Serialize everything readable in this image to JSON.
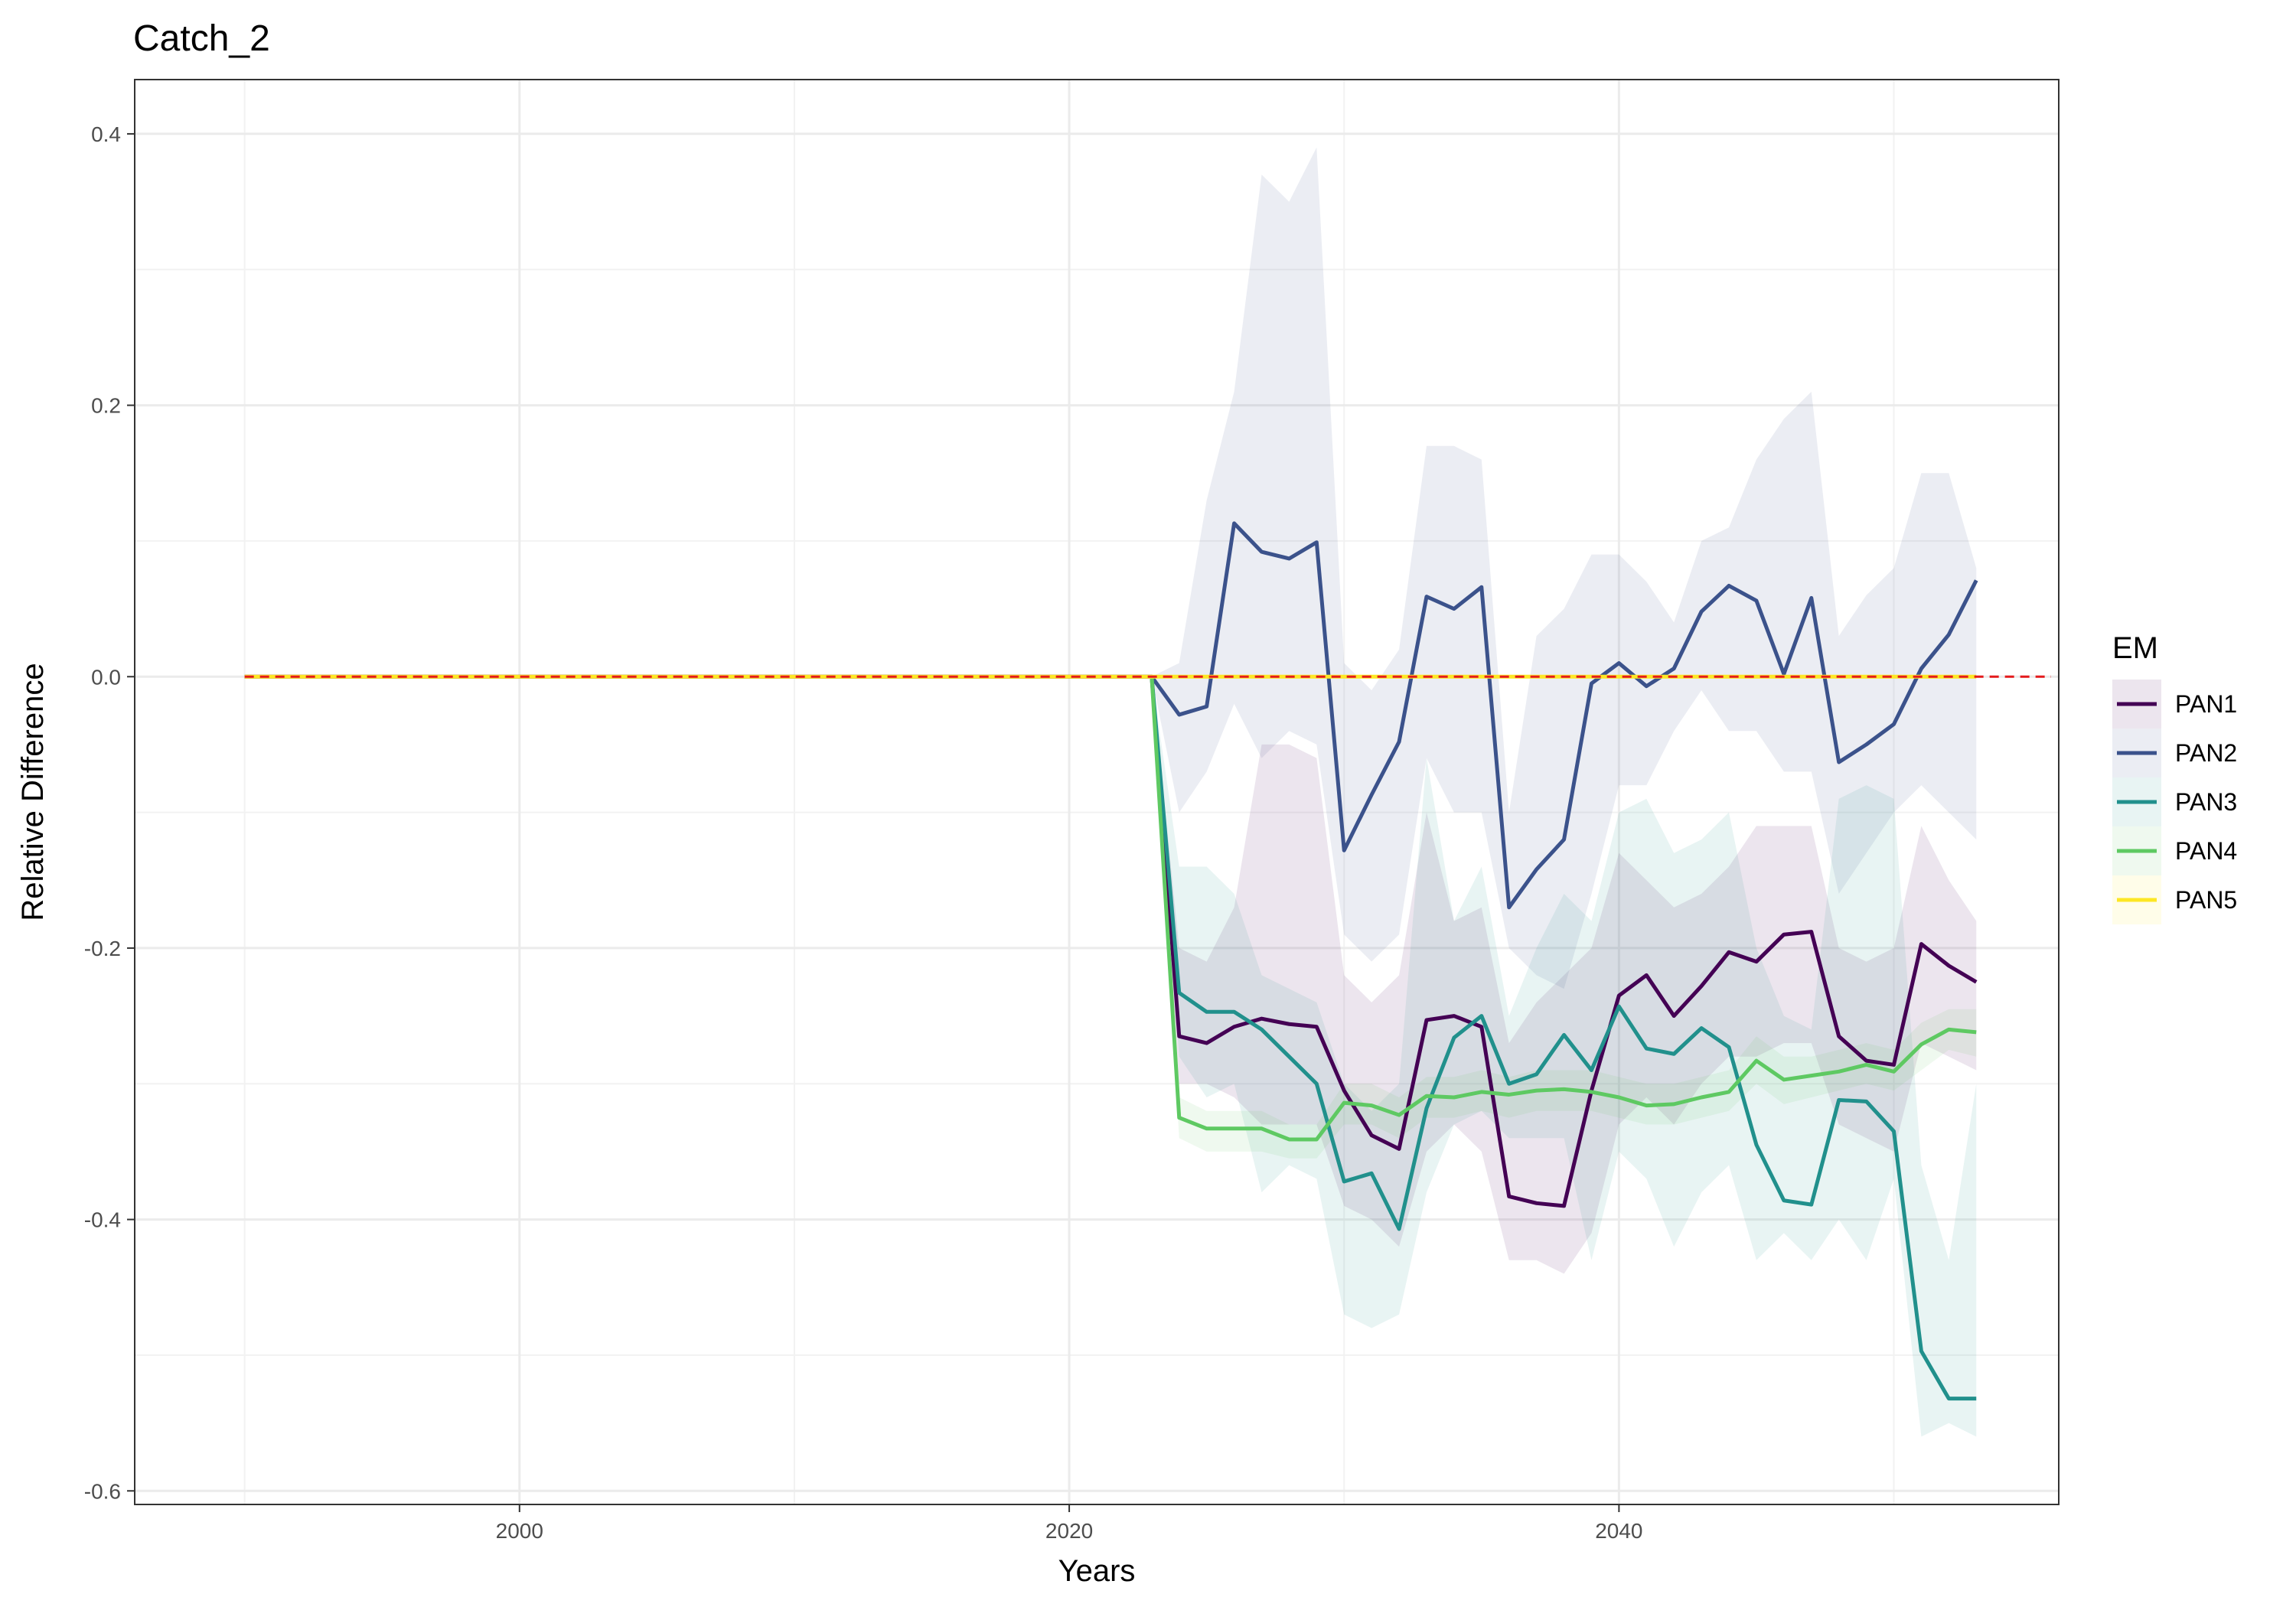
{
  "chart_data": {
    "type": "line",
    "title": "Catch_2",
    "xlabel": "Years",
    "ylabel": "Relative Difference",
    "xlim": [
      1986,
      2056
    ],
    "ylim": [
      -0.61,
      0.44
    ],
    "x_ticks": [
      2000,
      2020,
      2040
    ],
    "x_tick_labels": [
      "2000",
      "2020",
      "2040"
    ],
    "y_ticks": [
      0.4,
      0.2,
      0.0,
      -0.2,
      -0.4,
      -0.6
    ],
    "y_tick_labels": [
      "0.4",
      "0.2",
      "0.0",
      "-0.2",
      "-0.4",
      "-0.6"
    ],
    "grid": true,
    "reference_line": {
      "y": 0,
      "color": "#e41a1c",
      "style": "dashed"
    },
    "legend": {
      "title": "EM",
      "position": "right"
    },
    "years": [
      2023,
      2024,
      2025,
      2026,
      2027,
      2028,
      2029,
      2030,
      2031,
      2032,
      2033,
      2034,
      2035,
      2036,
      2037,
      2038,
      2039,
      2040,
      2041,
      2042,
      2043,
      2044,
      2045,
      2046,
      2047,
      2048,
      2049,
      2050,
      2051,
      2052,
      2053
    ],
    "series": [
      {
        "name": "PAN1",
        "color": "#440154",
        "x_start": 1990,
        "values": [
          0,
          -0.265,
          -0.27,
          -0.258,
          -0.252,
          -0.256,
          -0.258,
          -0.305,
          -0.338,
          -0.348,
          -0.253,
          -0.25,
          -0.258,
          -0.383,
          -0.388,
          -0.39,
          -0.305,
          -0.235,
          -0.22,
          -0.25,
          -0.228,
          -0.203,
          -0.21,
          -0.19,
          -0.188,
          -0.265,
          -0.283,
          -0.286,
          -0.197,
          -0.213,
          -0.225
        ],
        "upper": [
          0,
          -0.2,
          -0.21,
          -0.17,
          -0.05,
          -0.05,
          -0.06,
          -0.22,
          -0.24,
          -0.22,
          -0.1,
          -0.18,
          -0.17,
          -0.27,
          -0.24,
          -0.22,
          -0.2,
          -0.13,
          -0.15,
          -0.17,
          -0.16,
          -0.14,
          -0.11,
          -0.11,
          -0.11,
          -0.2,
          -0.21,
          -0.2,
          -0.11,
          -0.15,
          -0.18
        ],
        "lower": [
          0,
          -0.3,
          -0.3,
          -0.31,
          -0.33,
          -0.33,
          -0.33,
          -0.39,
          -0.4,
          -0.42,
          -0.35,
          -0.33,
          -0.35,
          -0.43,
          -0.43,
          -0.44,
          -0.41,
          -0.33,
          -0.31,
          -0.33,
          -0.3,
          -0.28,
          -0.28,
          -0.27,
          -0.27,
          -0.33,
          -0.34,
          -0.35,
          -0.27,
          -0.28,
          -0.29
        ]
      },
      {
        "name": "PAN2",
        "color": "#3b528b",
        "x_start": 2023,
        "values": [
          0,
          -0.028,
          -0.022,
          0.113,
          0.092,
          0.087,
          0.099,
          -0.128,
          -0.087,
          -0.048,
          0.059,
          0.05,
          0.066,
          -0.17,
          -0.142,
          -0.12,
          -0.005,
          0.01,
          -0.007,
          0.006,
          0.048,
          0.067,
          0.056,
          0.002,
          0.058,
          -0.063,
          -0.05,
          -0.035,
          0.006,
          0.031,
          0.071
        ],
        "upper": [
          0,
          0.01,
          0.13,
          0.21,
          0.37,
          0.35,
          0.39,
          0.01,
          -0.01,
          0.02,
          0.17,
          0.17,
          0.16,
          -0.1,
          0.03,
          0.05,
          0.09,
          0.09,
          0.07,
          0.04,
          0.1,
          0.11,
          0.16,
          0.19,
          0.21,
          0.03,
          0.06,
          0.08,
          0.15,
          0.15,
          0.08
        ],
        "lower": [
          0,
          -0.1,
          -0.07,
          -0.02,
          -0.06,
          -0.04,
          -0.05,
          -0.19,
          -0.21,
          -0.19,
          -0.06,
          -0.1,
          -0.1,
          -0.2,
          -0.22,
          -0.23,
          -0.16,
          -0.08,
          -0.08,
          -0.04,
          -0.01,
          -0.04,
          -0.04,
          -0.07,
          -0.07,
          -0.16,
          -0.13,
          -0.1,
          -0.08,
          -0.1,
          -0.12
        ]
      },
      {
        "name": "PAN3",
        "color": "#21908c",
        "x_start": 2023,
        "values": [
          0,
          -0.233,
          -0.247,
          -0.247,
          -0.26,
          -0.28,
          -0.3,
          -0.372,
          -0.366,
          -0.407,
          -0.318,
          -0.266,
          -0.25,
          -0.3,
          -0.293,
          -0.264,
          -0.29,
          -0.243,
          -0.274,
          -0.278,
          -0.259,
          -0.273,
          -0.345,
          -0.386,
          -0.389,
          -0.312,
          -0.313,
          -0.335,
          -0.497,
          -0.532,
          -0.532
        ],
        "upper": [
          0,
          -0.14,
          -0.14,
          -0.16,
          -0.22,
          -0.23,
          -0.24,
          -0.3,
          -0.32,
          -0.3,
          -0.06,
          -0.18,
          -0.14,
          -0.25,
          -0.2,
          -0.16,
          -0.18,
          -0.1,
          -0.09,
          -0.13,
          -0.12,
          -0.1,
          -0.2,
          -0.25,
          -0.26,
          -0.09,
          -0.08,
          -0.09,
          -0.36,
          -0.43,
          -0.3
        ],
        "lower": [
          0,
          -0.28,
          -0.31,
          -0.3,
          -0.38,
          -0.36,
          -0.37,
          -0.47,
          -0.48,
          -0.47,
          -0.38,
          -0.33,
          -0.32,
          -0.34,
          -0.34,
          -0.34,
          -0.43,
          -0.35,
          -0.37,
          -0.42,
          -0.38,
          -0.36,
          -0.43,
          -0.41,
          -0.43,
          -0.4,
          -0.43,
          -0.37,
          -0.56,
          -0.55,
          -0.56
        ]
      },
      {
        "name": "PAN4",
        "color": "#5ec962",
        "x_start": 2023,
        "values": [
          0,
          -0.325,
          -0.333,
          -0.333,
          -0.333,
          -0.341,
          -0.341,
          -0.314,
          -0.316,
          -0.323,
          -0.309,
          -0.31,
          -0.306,
          -0.308,
          -0.305,
          -0.304,
          -0.306,
          -0.31,
          -0.316,
          -0.315,
          -0.31,
          -0.306,
          -0.283,
          -0.297,
          -0.294,
          -0.291,
          -0.286,
          -0.291,
          -0.271,
          -0.26,
          -0.262
        ],
        "upper": [
          0,
          -0.31,
          -0.32,
          -0.32,
          -0.32,
          -0.33,
          -0.33,
          -0.3,
          -0.3,
          -0.31,
          -0.295,
          -0.295,
          -0.29,
          -0.295,
          -0.29,
          -0.29,
          -0.29,
          -0.295,
          -0.3,
          -0.3,
          -0.295,
          -0.29,
          -0.265,
          -0.28,
          -0.28,
          -0.275,
          -0.27,
          -0.275,
          -0.255,
          -0.245,
          -0.245
        ],
        "lower": [
          0,
          -0.34,
          -0.35,
          -0.35,
          -0.35,
          -0.355,
          -0.355,
          -0.33,
          -0.33,
          -0.34,
          -0.325,
          -0.325,
          -0.32,
          -0.325,
          -0.32,
          -0.32,
          -0.32,
          -0.325,
          -0.33,
          -0.33,
          -0.325,
          -0.32,
          -0.3,
          -0.315,
          -0.31,
          -0.305,
          -0.3,
          -0.305,
          -0.29,
          -0.275,
          -0.28
        ]
      },
      {
        "name": "PAN5",
        "color": "#fde725",
        "x_start": 1990,
        "values": [
          0,
          0,
          0,
          0,
          0,
          0,
          0,
          0,
          0,
          0,
          0,
          0,
          0,
          0,
          0,
          0,
          0,
          0,
          0,
          0,
          0,
          0,
          0,
          0,
          0,
          0,
          0,
          0,
          0,
          0,
          0
        ],
        "upper": [
          0,
          0,
          0,
          0,
          0,
          0,
          0,
          0,
          0,
          0,
          0,
          0,
          0,
          0,
          0,
          0,
          0,
          0,
          0,
          0,
          0,
          0,
          0,
          0,
          0,
          0,
          0,
          0,
          0,
          0,
          0
        ],
        "lower": [
          0,
          0,
          0,
          0,
          0,
          0,
          0,
          0,
          0,
          0,
          0,
          0,
          0,
          0,
          0,
          0,
          0,
          0,
          0,
          0,
          0,
          0,
          0,
          0,
          0,
          0,
          0,
          0,
          0,
          0,
          0
        ]
      }
    ]
  }
}
